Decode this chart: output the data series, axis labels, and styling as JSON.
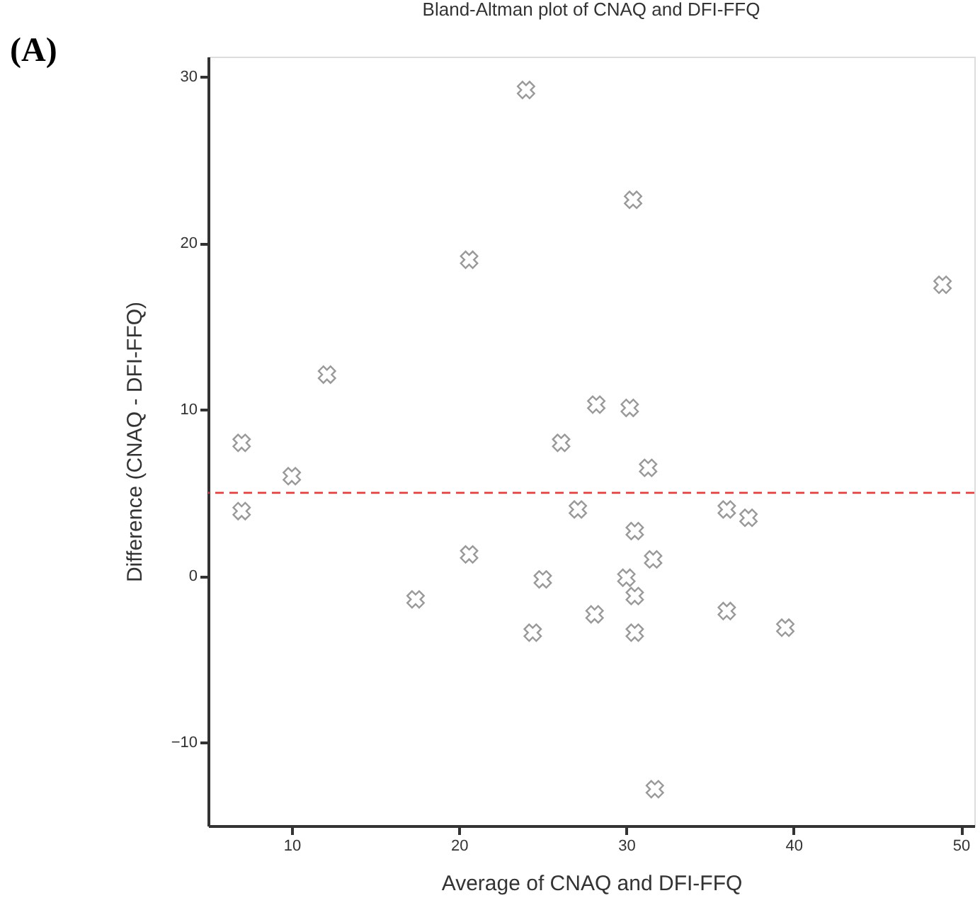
{
  "chart_data": {
    "type": "scatter",
    "title": "Bland-Altman plot of CNAQ and DFI-FFQ",
    "xlabel": "Average of CNAQ and DFI-FFQ",
    "ylabel": "Difference (CNAQ - DFI-FFQ)",
    "annotations": [
      "(A)"
    ],
    "x": [
      7.0,
      10.0,
      12.1,
      20.6,
      24.0,
      26.1,
      30.4,
      48.9,
      28.2,
      30.2,
      31.3,
      7.0,
      17.4,
      20.6,
      25.0,
      24.4,
      27.1,
      36.0,
      37.3,
      30.5,
      31.6,
      30.0,
      30.5,
      28.1,
      30.5,
      36.0,
      39.5,
      31.7
    ],
    "values": [
      8.0,
      6.0,
      12.1,
      19.0,
      29.2,
      8.0,
      22.6,
      17.5,
      10.3,
      10.1,
      6.5,
      3.9,
      -1.4,
      1.3,
      -0.2,
      -3.4,
      4.0,
      4.0,
      3.5,
      2.7,
      1.0,
      -0.1,
      -1.2,
      -2.3,
      -3.4,
      -2.1,
      -3.1,
      -12.8
    ],
    "color": "#6e6e6e",
    "marker": "cross",
    "grid": false,
    "xlim": [
      5,
      50.8
    ],
    "xticks": [
      10,
      20,
      30,
      40,
      50
    ],
    "ylim": [
      -15,
      31.2
    ],
    "yticks": [
      -10,
      0,
      10,
      20,
      30
    ],
    "ref_lines": [
      {
        "axis": "y",
        "value": 5.0,
        "color": "#e0403f",
        "line_style": "dashed"
      }
    ]
  }
}
